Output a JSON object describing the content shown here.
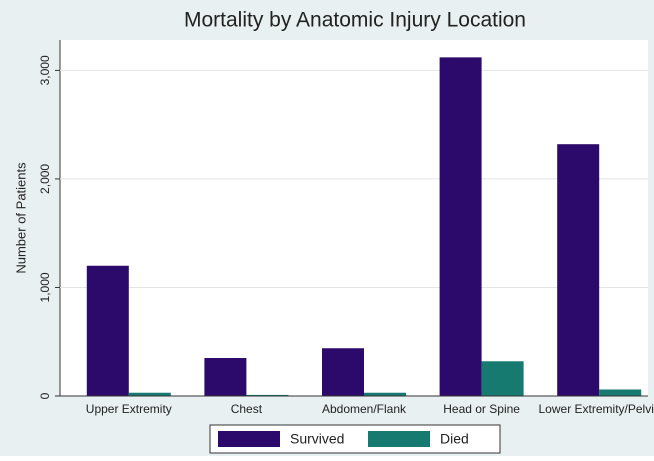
{
  "chart_data": {
    "type": "bar",
    "title": "Mortality by Anatomic Injury Location",
    "y_label": "Number of Patients",
    "categories": [
      "Upper Extremity",
      "Chest",
      "Abdomen/Flank",
      "Head or Spine",
      "Lower Extremity/Pelvis"
    ],
    "series": [
      {
        "name": "Survived",
        "color": "#2b0a6b",
        "values": [
          1200,
          350,
          440,
          3120,
          2320
        ]
      },
      {
        "name": "Died",
        "color": "#167a70",
        "values": [
          30,
          10,
          30,
          320,
          60
        ]
      }
    ],
    "ylim": [
      0,
      3280
    ],
    "yticks": [
      0,
      {
        "value": 1000,
        "label": "1,000"
      },
      {
        "value": 2000,
        "label": "2,000"
      },
      {
        "value": 3000,
        "label": "3,000"
      }
    ],
    "grid": true
  }
}
